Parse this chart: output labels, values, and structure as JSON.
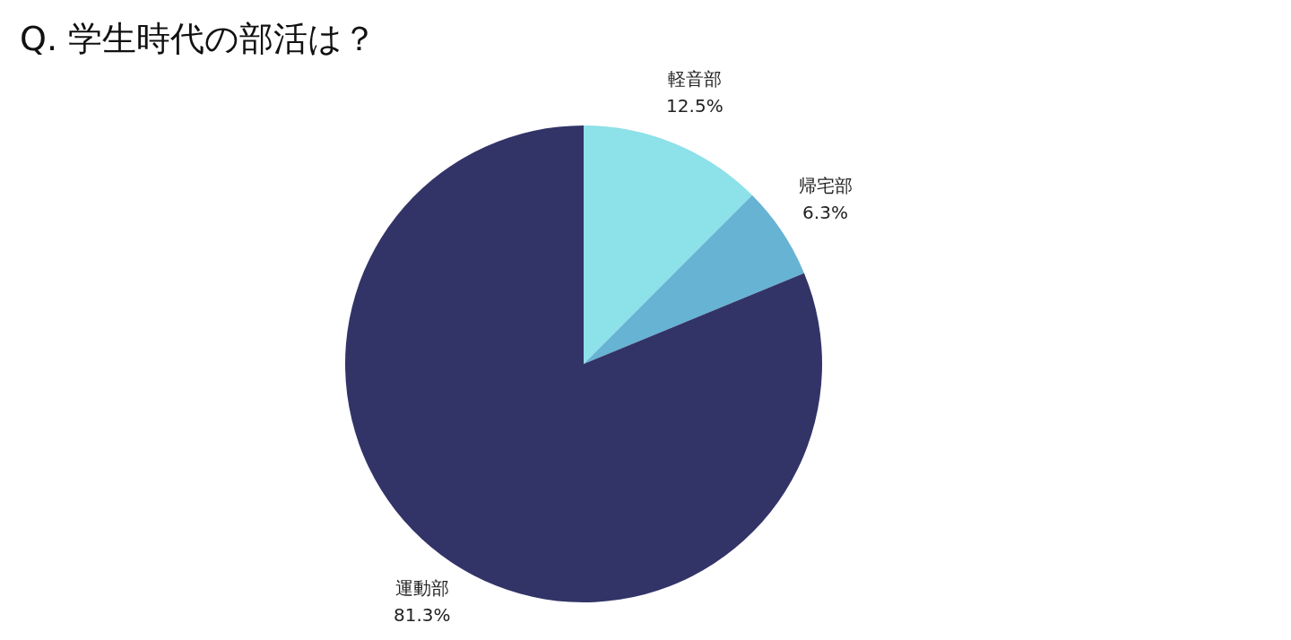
{
  "chart_data": {
    "type": "pie",
    "title": "Q. 学生時代の部活は？",
    "categories": [
      "軽音部",
      "帰宅部",
      "運動部"
    ],
    "values": [
      12.5,
      6.3,
      81.3
    ],
    "value_labels": [
      "12.5%",
      "6.3%",
      "81.3%"
    ],
    "colors": [
      "#8de1e8",
      "#66b3d3",
      "#323468"
    ]
  }
}
